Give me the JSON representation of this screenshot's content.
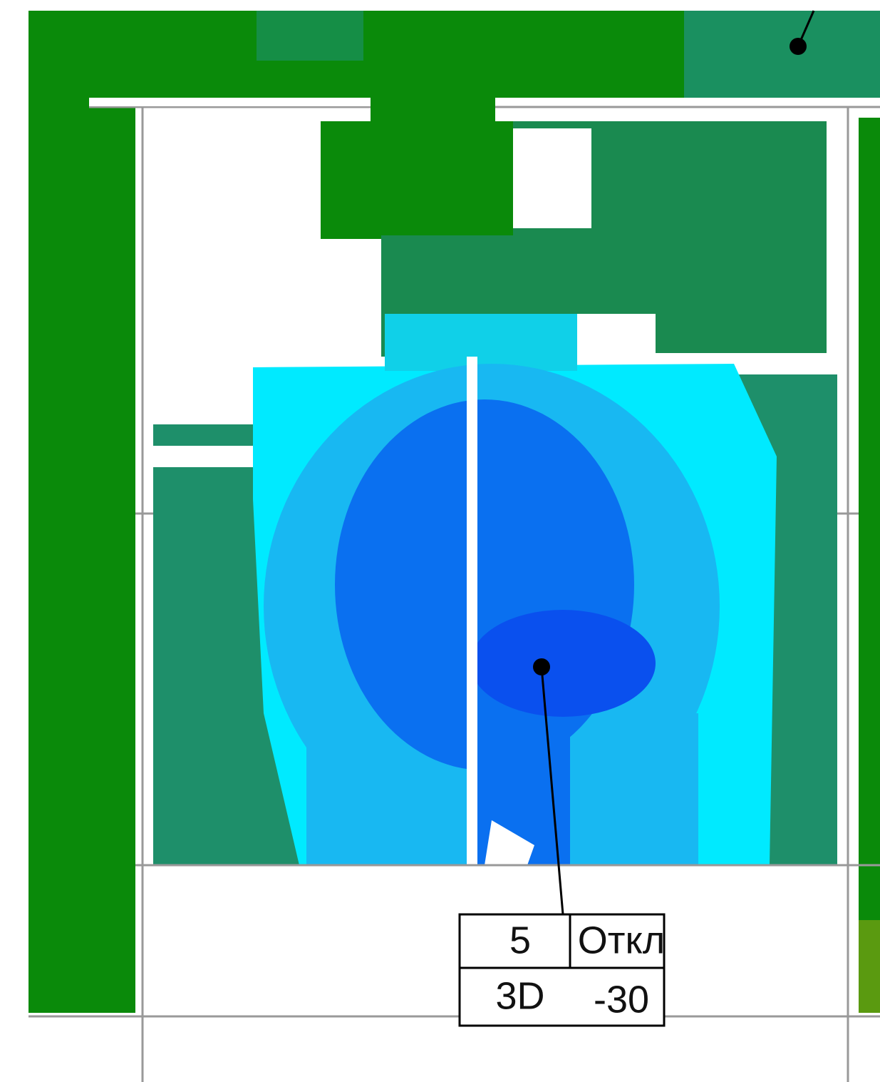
{
  "callout": {
    "id": "5",
    "label": "Откл",
    "mode": "3D",
    "value": -30
  }
}
